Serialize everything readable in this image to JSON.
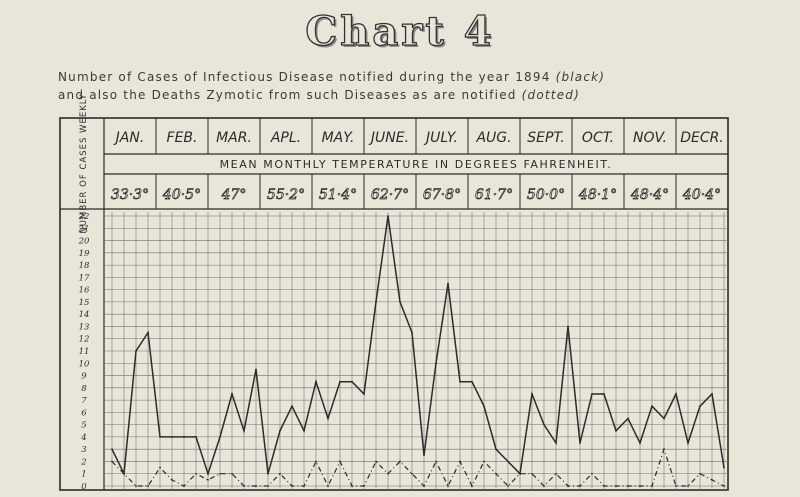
{
  "title": "Chart 4",
  "subtitle_line1": "Number of Cases of Infectious Disease notified during the year 1894",
  "subtitle_note1": "(black)",
  "subtitle_line2": "and also the Deaths Zymotic from such Diseases as are notified",
  "subtitle_note2": "(dotted)",
  "colors": {
    "paper": "#e9e5d9",
    "ink": "#2b2b2b",
    "grid": "#6f6f6f"
  },
  "chart_data": {
    "type": "line",
    "ylabel": "Number of cases weekly",
    "temperature_label": "Mean monthly temperature in degrees Fahrenheit.",
    "months": [
      "Jan.",
      "Feb.",
      "Mar.",
      "Apl.",
      "May.",
      "June.",
      "July.",
      "Aug.",
      "Sept.",
      "Oct.",
      "Nov.",
      "Decr."
    ],
    "temperatures": [
      "33·3°",
      "40·5°",
      "47°",
      "55·2°",
      "51·4°",
      "62·7°",
      "67·8°",
      "61·7°",
      "50·0°",
      "48·1°",
      "48·4°",
      "40·4°"
    ],
    "yticks": [
      0,
      1,
      2,
      3,
      4,
      5,
      6,
      7,
      8,
      9,
      10,
      11,
      12,
      13,
      14,
      15,
      16,
      17,
      18,
      19,
      20,
      21,
      22
    ],
    "ylim": [
      0,
      22
    ],
    "weeks": 52,
    "grid": true,
    "series": [
      {
        "style": "solid",
        "values": [
          3,
          1,
          11,
          12.5,
          4,
          4,
          4,
          4,
          1,
          4,
          7.5,
          4.5,
          9.5,
          1,
          4.5,
          6.5,
          4.5,
          8.5,
          5.5,
          8.5,
          8.5,
          7.5,
          15,
          22,
          15,
          12.5,
          2.5,
          10,
          16.5,
          8.5,
          8.5,
          6.5,
          3,
          2,
          1,
          7.5,
          5,
          3.5,
          13,
          3.5,
          7.5,
          7.5,
          4.5,
          5.5,
          3.5,
          6.5,
          5.5,
          7.5,
          3.5,
          6.5,
          7.5,
          1.5
        ]
      },
      {
        "style": "dashed",
        "values": [
          2,
          1,
          0,
          0,
          1.5,
          0.5,
          0,
          1,
          0.5,
          1,
          1,
          0,
          0,
          0,
          1,
          0,
          0,
          2,
          0,
          2,
          0,
          0,
          2,
          1,
          2,
          1,
          0,
          2,
          0,
          2,
          0,
          2,
          1,
          0,
          1,
          1,
          0,
          1,
          0,
          0,
          1,
          0,
          0,
          0,
          0,
          0,
          3,
          0,
          0,
          1,
          0.5,
          0
        ]
      }
    ]
  }
}
